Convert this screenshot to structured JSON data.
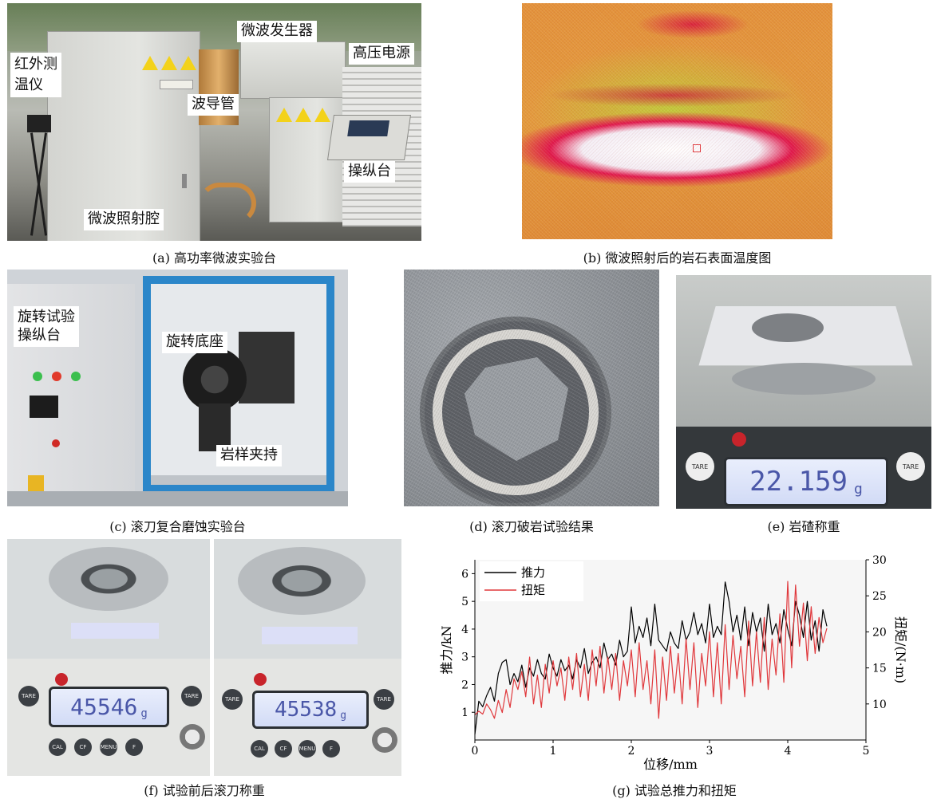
{
  "panel_a": {
    "labels": {
      "infrared": "红外测\n温仪",
      "generator": "微波发生器",
      "power": "高压电源",
      "waveguide": "波导管",
      "console": "操纵台",
      "chamber": "微波照射腔"
    },
    "caption": "(a) 高功率微波实验台"
  },
  "panel_b": {
    "caption": "(b) 微波照射后的岩石表面温度图"
  },
  "panel_c": {
    "labels": {
      "console": "旋转试验\n操纵台",
      "base": "旋转底座",
      "clamp": "岩样夹持"
    },
    "caption": "(c) 滚刀复合磨蚀实验台"
  },
  "panel_d": {
    "caption": "(d) 滚刀破岩试验结果"
  },
  "panel_e": {
    "display_value": "22.159",
    "unit": "g",
    "tare_left": "TARE",
    "tare_right": "TARE",
    "caption": "(e) 岩碴称重"
  },
  "panel_f": {
    "before": {
      "display_value": "45546",
      "unit": "g"
    },
    "after": {
      "display_value": "45538",
      "unit": "g"
    },
    "buttons": [
      "CAL",
      "CF",
      "MENU",
      "F"
    ],
    "tare": "TARE",
    "caption": "(f) 试验前后滚刀称重"
  },
  "panel_g": {
    "caption": "(g) 试验总推力和扭矩"
  },
  "chart_data": {
    "type": "line",
    "xlabel": "位移/mm",
    "ylabel": "推力/kN",
    "y2label": "扭矩/(N·m)",
    "xlim": [
      0,
      5
    ],
    "ylim": [
      0,
      6.5
    ],
    "y2lim": [
      5,
      30
    ],
    "xticks": [
      0,
      1,
      2,
      3,
      4,
      5
    ],
    "yticks": [
      1,
      2,
      3,
      4,
      5,
      6
    ],
    "y2ticks": [
      10,
      15,
      20,
      25,
      30
    ],
    "legend_position": "top-left",
    "series": [
      {
        "name": "推力",
        "axis": "left",
        "color": "#000000",
        "x": [
          0,
          0.05,
          0.1,
          0.15,
          0.2,
          0.25,
          0.3,
          0.35,
          0.4,
          0.45,
          0.5,
          0.55,
          0.6,
          0.65,
          0.7,
          0.75,
          0.8,
          0.85,
          0.9,
          0.95,
          1.0,
          1.05,
          1.1,
          1.15,
          1.2,
          1.25,
          1.3,
          1.35,
          1.4,
          1.45,
          1.5,
          1.55,
          1.6,
          1.65,
          1.7,
          1.75,
          1.8,
          1.85,
          1.9,
          1.95,
          2.0,
          2.05,
          2.1,
          2.15,
          2.2,
          2.25,
          2.3,
          2.35,
          2.4,
          2.45,
          2.5,
          2.55,
          2.6,
          2.65,
          2.7,
          2.75,
          2.8,
          2.85,
          2.9,
          2.95,
          3.0,
          3.05,
          3.1,
          3.15,
          3.2,
          3.25,
          3.3,
          3.35,
          3.4,
          3.45,
          3.5,
          3.55,
          3.6,
          3.65,
          3.7,
          3.75,
          3.8,
          3.85,
          3.9,
          3.95,
          4.0,
          4.05,
          4.1,
          4.15,
          4.2,
          4.25,
          4.3,
          4.35,
          4.4,
          4.45,
          4.5
        ],
        "values": [
          0.2,
          1.4,
          1.2,
          1.6,
          1.9,
          1.4,
          2.4,
          2.8,
          2.9,
          2.0,
          2.4,
          2.1,
          2.7,
          1.9,
          2.6,
          2.3,
          2.9,
          2.4,
          2.2,
          3.1,
          2.6,
          2.3,
          2.9,
          2.5,
          2.7,
          2.2,
          2.9,
          2.6,
          3.3,
          2.4,
          2.8,
          3.0,
          2.6,
          3.5,
          2.9,
          3.1,
          2.7,
          3.6,
          3.0,
          3.2,
          4.8,
          3.5,
          4.1,
          3.7,
          4.4,
          3.4,
          4.9,
          3.6,
          3.4,
          3.2,
          3.9,
          3.5,
          3.3,
          4.3,
          3.6,
          3.9,
          4.6,
          3.8,
          4.2,
          3.5,
          4.9,
          3.7,
          4.1,
          3.8,
          5.7,
          5.0,
          3.9,
          4.5,
          3.6,
          4.8,
          3.4,
          4.6,
          3.9,
          4.4,
          3.2,
          4.9,
          3.8,
          4.2,
          3.5,
          4.7,
          4.0,
          3.4,
          5.0,
          4.5,
          3.7,
          5.0,
          3.6,
          4.3,
          3.2,
          4.7,
          4.1
        ]
      },
      {
        "name": "扭矩",
        "axis": "right",
        "color": "#e0383c",
        "x": [
          0,
          0.05,
          0.1,
          0.15,
          0.2,
          0.25,
          0.3,
          0.35,
          0.4,
          0.45,
          0.5,
          0.55,
          0.6,
          0.65,
          0.7,
          0.75,
          0.8,
          0.85,
          0.9,
          0.95,
          1.0,
          1.05,
          1.1,
          1.15,
          1.2,
          1.25,
          1.3,
          1.35,
          1.4,
          1.45,
          1.5,
          1.55,
          1.6,
          1.65,
          1.7,
          1.75,
          1.8,
          1.85,
          1.9,
          1.95,
          2.0,
          2.05,
          2.1,
          2.15,
          2.2,
          2.25,
          2.3,
          2.35,
          2.4,
          2.45,
          2.5,
          2.55,
          2.6,
          2.65,
          2.7,
          2.75,
          2.8,
          2.85,
          2.9,
          2.95,
          3.0,
          3.05,
          3.1,
          3.15,
          3.2,
          3.25,
          3.3,
          3.35,
          3.4,
          3.45,
          3.5,
          3.55,
          3.6,
          3.65,
          3.7,
          3.75,
          3.8,
          3.85,
          3.9,
          3.95,
          4.0,
          4.05,
          4.1,
          4.15,
          4.2,
          4.25,
          4.3,
          4.35,
          4.4,
          4.45,
          4.5
        ],
        "values": [
          8.5,
          9.0,
          8.6,
          10.0,
          9.2,
          8.0,
          10.5,
          8.8,
          12.0,
          9.5,
          13.5,
          12.0,
          14.5,
          11.0,
          16.5,
          10.0,
          14.0,
          9.5,
          15.5,
          11.5,
          16.0,
          12.5,
          15.0,
          10.5,
          16.5,
          12.0,
          17.0,
          11.0,
          15.5,
          10.5,
          17.5,
          12.5,
          18.0,
          11.5,
          16.5,
          12.0,
          17.0,
          10.5,
          16.0,
          12.5,
          17.5,
          11.0,
          18.5,
          12.0,
          16.0,
          10.0,
          17.5,
          8.0,
          16.5,
          10.5,
          18.0,
          11.5,
          17.0,
          10.0,
          19.0,
          12.0,
          18.5,
          9.5,
          17.0,
          12.5,
          20.0,
          11.0,
          18.5,
          10.0,
          21.0,
          12.0,
          19.5,
          13.5,
          18.0,
          11.0,
          21.5,
          12.5,
          20.0,
          13.0,
          22.0,
          12.0,
          19.0,
          14.0,
          22.5,
          13.0,
          27.0,
          15.0,
          26.5,
          18.0,
          24.0,
          16.0,
          23.5,
          17.0,
          22.0,
          18.5,
          20.5
        ]
      }
    ]
  }
}
